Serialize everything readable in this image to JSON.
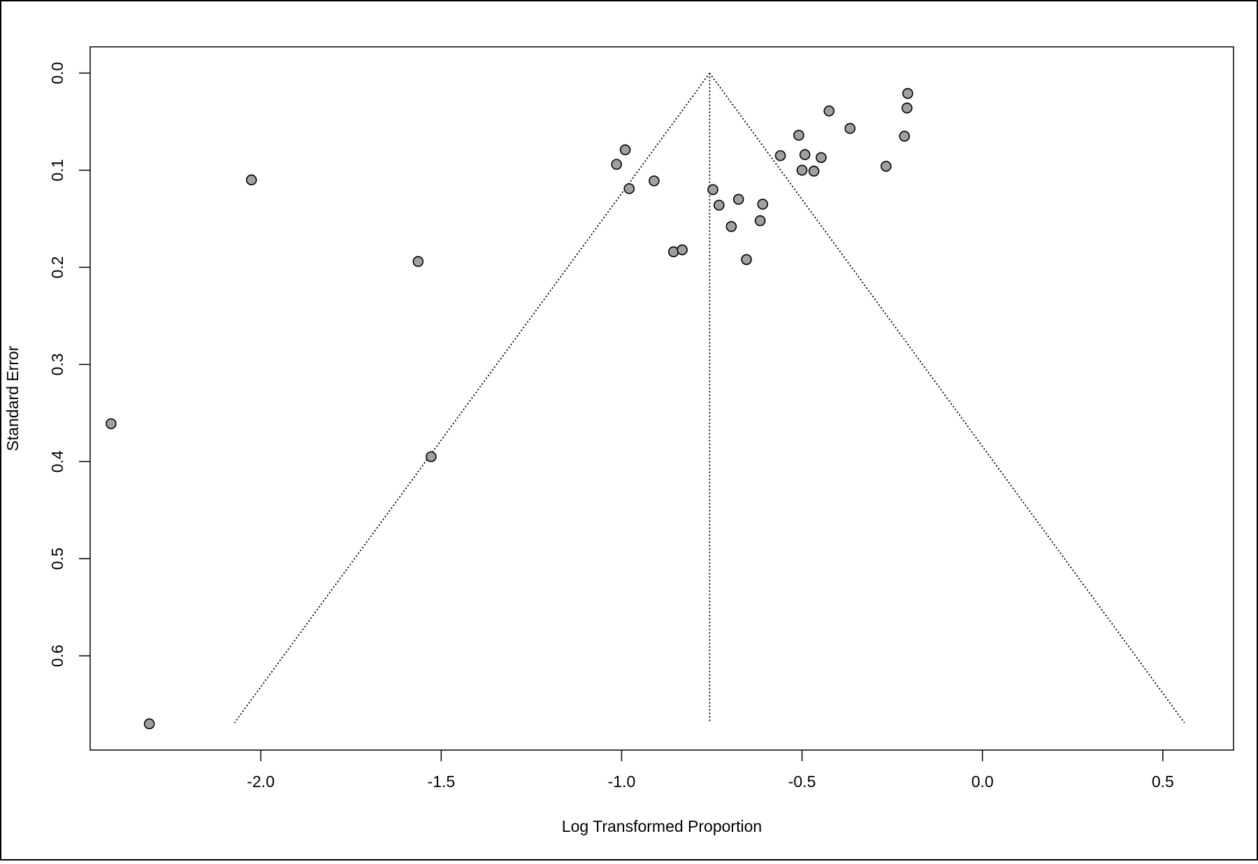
{
  "chart_data": {
    "type": "scatter",
    "x_label": "Log Transformed Proportion",
    "y_label": "Standard Error",
    "xlim": [
      -2.473,
      0.696
    ],
    "ylim": [
      -0.027,
      0.697
    ],
    "y_reversed": true,
    "xticks": [
      {
        "value": -2.0,
        "label": "-2.0"
      },
      {
        "value": -1.5,
        "label": "-1.5"
      },
      {
        "value": -1.0,
        "label": "-1.0"
      },
      {
        "value": -0.5,
        "label": "-0.5"
      },
      {
        "value": 0.0,
        "label": "0.0"
      },
      {
        "value": 0.5,
        "label": "0.5"
      }
    ],
    "yticks": [
      {
        "value": 0.0,
        "label": "0.0"
      },
      {
        "value": 0.1,
        "label": "0.1"
      },
      {
        "value": 0.2,
        "label": "0.2"
      },
      {
        "value": 0.3,
        "label": "0.3"
      },
      {
        "value": 0.4,
        "label": "0.4"
      },
      {
        "value": 0.5,
        "label": "0.5"
      },
      {
        "value": 0.6,
        "label": "0.6"
      }
    ],
    "grid": false,
    "funnel": {
      "center": -0.756,
      "se_max": 0.669,
      "lower": -2.073,
      "upper": 0.56
    },
    "series": [
      {
        "color": "#a0a0a0",
        "x": [
          -2.026,
          -2.415,
          -2.309,
          -1.564,
          -1.528,
          -0.99,
          -1.014,
          -0.979,
          -0.91,
          -0.856,
          -0.832,
          -0.747,
          -0.73,
          -0.676,
          -0.696,
          -0.609,
          -0.616,
          -0.654,
          -0.56,
          -0.509,
          -0.492,
          -0.5,
          -0.467,
          -0.447,
          -0.425,
          -0.367,
          -0.267,
          -0.216,
          -0.207,
          -0.209
        ],
        "values": [
          0.11,
          0.361,
          0.67,
          0.194,
          0.395,
          0.079,
          0.094,
          0.119,
          0.111,
          0.184,
          0.182,
          0.12,
          0.136,
          0.13,
          0.158,
          0.135,
          0.152,
          0.192,
          0.085,
          0.064,
          0.084,
          0.1,
          0.101,
          0.087,
          0.039,
          0.057,
          0.096,
          0.065,
          0.021,
          0.036
        ]
      }
    ]
  }
}
